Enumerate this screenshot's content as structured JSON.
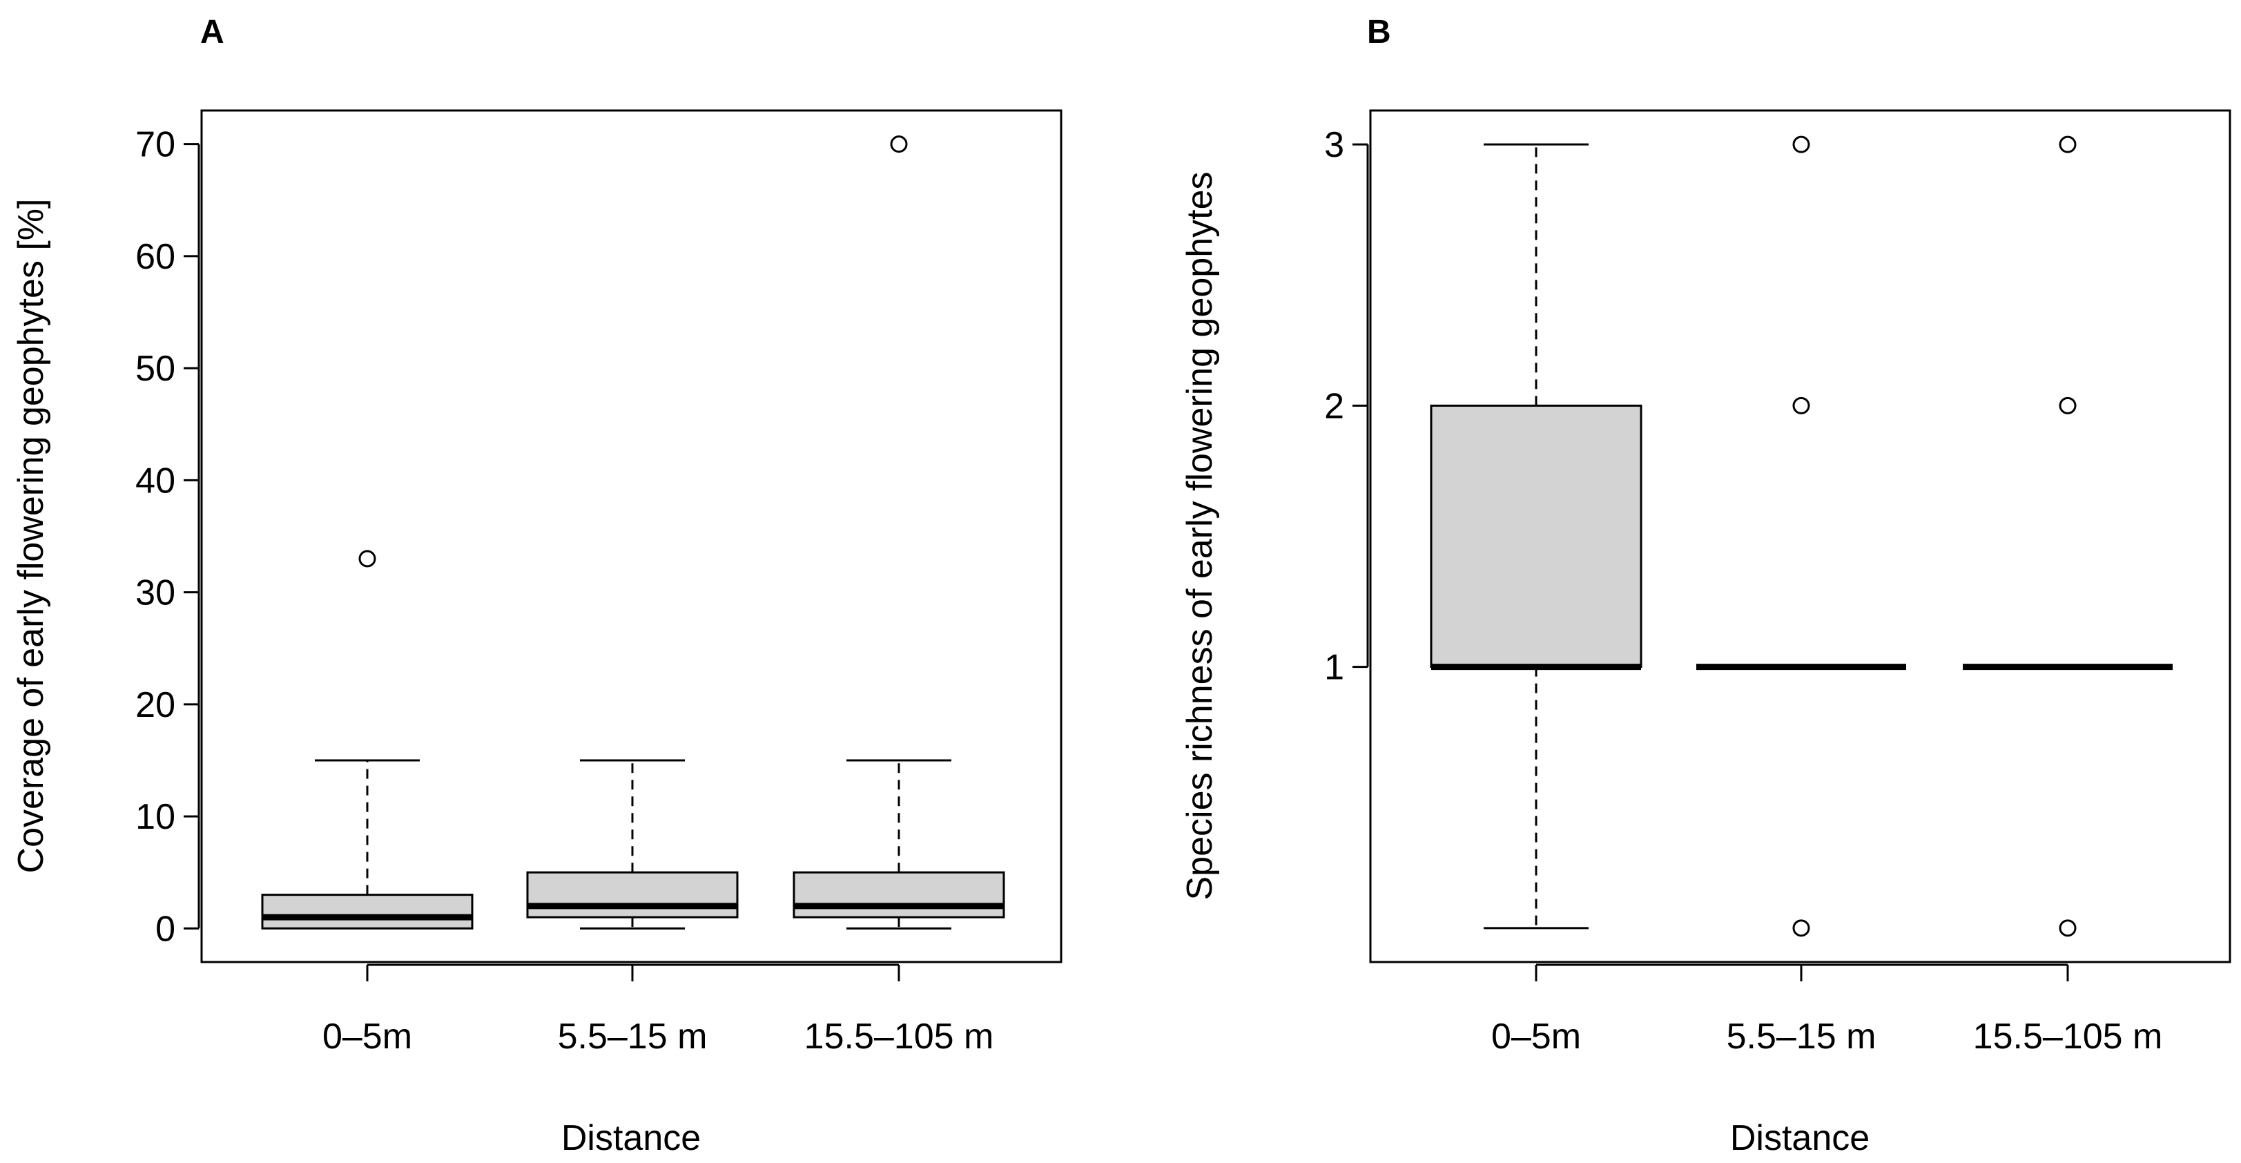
{
  "chart_data": [
    {
      "type": "boxplot",
      "panel_label": "A",
      "xlabel": "Distance",
      "ylabel": "Coverage of early flowering geophytes [%]",
      "categories": [
        "0–5m",
        "5.5–15 m",
        "15.5–105 m"
      ],
      "ylim": [
        -3,
        73
      ],
      "yticks": [
        0,
        10,
        20,
        30,
        40,
        50,
        60,
        70
      ],
      "ytick_labels": [
        "0",
        "10",
        "20",
        "30",
        "40",
        "50",
        "60",
        "70"
      ],
      "boxes": [
        {
          "min": 0,
          "q1": 0,
          "median": 1,
          "q3": 3,
          "max": 15,
          "outliers": [
            33
          ]
        },
        {
          "min": 0,
          "q1": 1,
          "median": 2,
          "q3": 5,
          "max": 15,
          "outliers": []
        },
        {
          "min": 0,
          "q1": 1,
          "median": 2,
          "q3": 5,
          "max": 15,
          "outliers": [
            70
          ]
        }
      ],
      "box_fill": "#d3d3d3"
    },
    {
      "type": "boxplot",
      "panel_label": "B",
      "xlabel": "Distance",
      "ylabel": "Species richness of early flowering geophytes",
      "categories": [
        "0–5m",
        "5.5–15 m",
        "15.5–105 m"
      ],
      "ylim": [
        -0.13,
        3.13
      ],
      "yticks": [
        1,
        2,
        3
      ],
      "ytick_labels": [
        "1",
        "2",
        "3"
      ],
      "boxes": [
        {
          "min": 0,
          "q1": 1,
          "median": 1,
          "q3": 2,
          "max": 3,
          "outliers": []
        },
        {
          "min": 1,
          "q1": 1,
          "median": 1,
          "q3": 1,
          "max": 1,
          "outliers": [
            0,
            2,
            3
          ]
        },
        {
          "min": 1,
          "q1": 1,
          "median": 1,
          "q3": 1,
          "max": 1,
          "outliers": [
            0,
            2,
            3
          ]
        }
      ],
      "box_fill": "#d3d3d3"
    }
  ]
}
